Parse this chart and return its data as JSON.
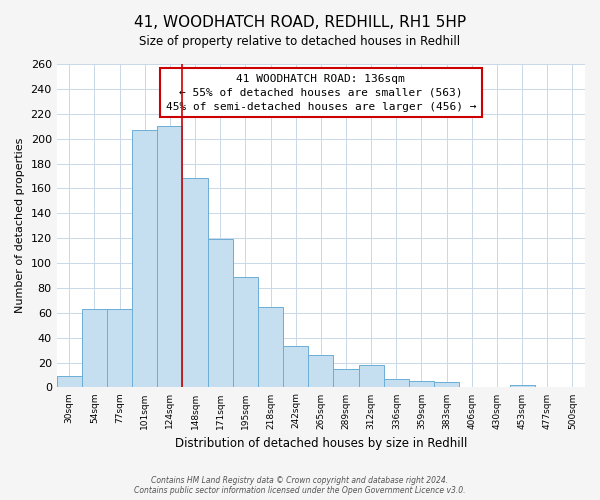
{
  "title": "41, WOODHATCH ROAD, REDHILL, RH1 5HP",
  "subtitle": "Size of property relative to detached houses in Redhill",
  "xlabel": "Distribution of detached houses by size in Redhill",
  "ylabel": "Number of detached properties",
  "bar_labels": [
    "30sqm",
    "54sqm",
    "77sqm",
    "101sqm",
    "124sqm",
    "148sqm",
    "171sqm",
    "195sqm",
    "218sqm",
    "242sqm",
    "265sqm",
    "289sqm",
    "312sqm",
    "336sqm",
    "359sqm",
    "383sqm",
    "406sqm",
    "430sqm",
    "453sqm",
    "477sqm",
    "500sqm"
  ],
  "bar_values": [
    9,
    63,
    63,
    207,
    210,
    168,
    119,
    89,
    65,
    33,
    26,
    15,
    18,
    7,
    5,
    4,
    0,
    0,
    2,
    0,
    0
  ],
  "bar_color": "#c5dff0",
  "bar_edge_color": "#6aaed6",
  "vline_x": 4.5,
  "vline_color": "#cc0000",
  "annotation_line1": "41 WOODHATCH ROAD: 136sqm",
  "annotation_line2": "← 55% of detached houses are smaller (563)",
  "annotation_line3": "45% of semi-detached houses are larger (456) →",
  "annotation_box_edgecolor": "#cc0000",
  "ylim": [
    0,
    260
  ],
  "yticks": [
    0,
    20,
    40,
    60,
    80,
    100,
    120,
    140,
    160,
    180,
    200,
    220,
    240,
    260
  ],
  "footer1": "Contains HM Land Registry data © Crown copyright and database right 2024.",
  "footer2": "Contains public sector information licensed under the Open Government Licence v3.0.",
  "bg_color": "#f5f5f5",
  "plot_bg_color": "#ffffff",
  "grid_color": "#c8d8e8"
}
